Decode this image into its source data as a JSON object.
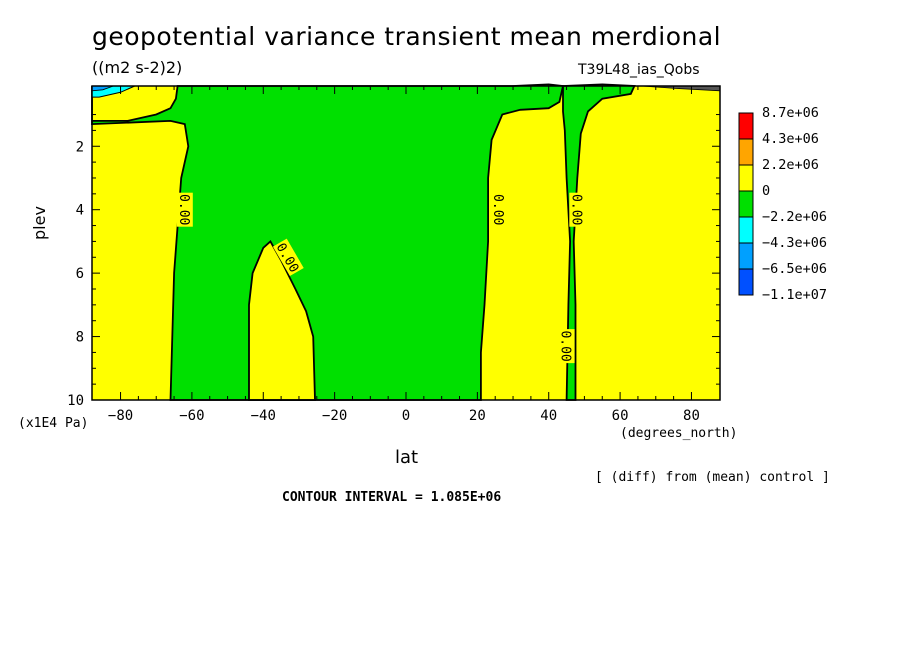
{
  "chart_data": {
    "type": "heatmap",
    "title": "geopotential variance transient mean merdional",
    "units": "((m2 s-2)2)",
    "run_name": "T39L48_ias_Qobs",
    "xlabel": "lat",
    "x_unit_label": "(degrees_north)",
    "ylabel": "plev",
    "y_unit_label": "(x1E4 Pa)",
    "xlim": [
      -88,
      88
    ],
    "ylim": [
      10,
      0.1
    ],
    "x_ticks": [
      -80,
      -60,
      -40,
      -20,
      0,
      20,
      40,
      60,
      80
    ],
    "x_tick_labels": [
      "−80",
      "−60",
      "−40",
      "−20",
      "0",
      "20",
      "40",
      "60",
      "80"
    ],
    "y_ticks": [
      2,
      4,
      6,
      8,
      10
    ],
    "y_tick_labels": [
      "2",
      "4",
      "6",
      "8",
      "10"
    ],
    "colorbar": {
      "labels": [
        "8.7e+06",
        "4.3e+06",
        "2.2e+06",
        "0",
        "−2.2e+06",
        "−4.3e+06",
        "−6.5e+06",
        "−1.1e+07"
      ],
      "colors": [
        "#ff0000",
        "#ffa500",
        "#ffff00",
        "#00e000",
        "#00ffff",
        "#00a0ff",
        "#0050ff"
      ]
    },
    "regions": [
      {
        "level": "0 to 2.2e+06",
        "color": "#ffff00",
        "lat_range": [
          -88,
          -64
        ],
        "plev_range": [
          1.2,
          10
        ]
      },
      {
        "level": "-2.2e+06 to 0",
        "color": "#00e000",
        "lat_range": [
          -66,
          22
        ],
        "plev_range": [
          0.1,
          10
        ]
      },
      {
        "level": "0 to 2.2e+06",
        "color": "#ffff00",
        "lat_range": [
          -44,
          -26
        ],
        "plev_range": [
          5,
          10
        ]
      },
      {
        "level": "0 to 2.2e+06",
        "color": "#ffff00",
        "lat_range": [
          21,
          44
        ],
        "plev_range": [
          0.8,
          10
        ]
      },
      {
        "level": "-2.2e+06 to 0",
        "color": "#00e000",
        "lat_range": [
          45,
          66
        ],
        "plev_range": [
          0.1,
          10
        ]
      },
      {
        "level": "0 to 2.2e+06",
        "color": "#ffff00",
        "lat_range": [
          47,
          88
        ],
        "plev_range": [
          0.1,
          10
        ]
      },
      {
        "level": "-4.3e+06 to -2.2e+06",
        "color": "#00ffff",
        "lat_range": [
          -88,
          -80
        ],
        "plev_range": [
          0.1,
          0.4
        ]
      }
    ],
    "contour_labels": [
      {
        "text": "0.00",
        "lat": -62,
        "plev": 4
      },
      {
        "text": "0.00",
        "lat": -33,
        "plev": 5.5
      },
      {
        "text": "0.00",
        "lat": 26,
        "plev": 4
      },
      {
        "text": "0.00",
        "lat": 48,
        "plev": 4
      },
      {
        "text": "0.00",
        "lat": 45,
        "plev": 8.3
      }
    ],
    "contour_interval_text": "CONTOUR INTERVAL = 1.085E+06",
    "diff_note": "[ (diff) from (mean) control ]"
  }
}
